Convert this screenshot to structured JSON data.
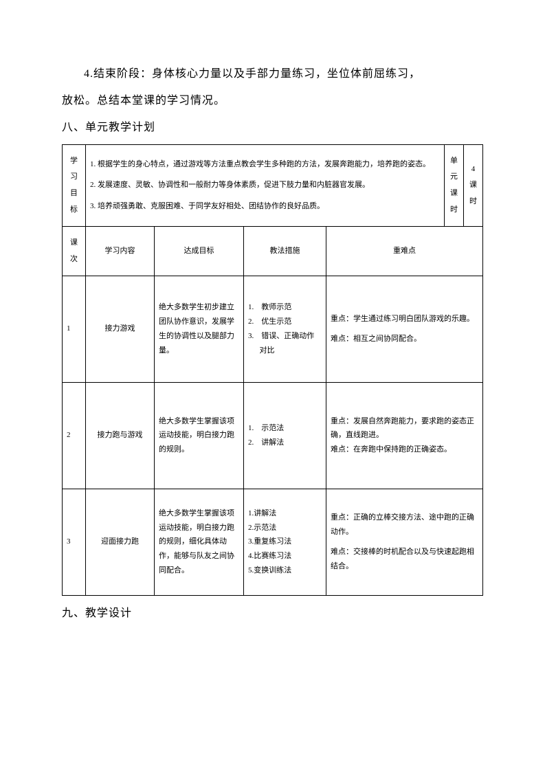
{
  "intro": {
    "para1_part1": "4.结束阶段：身体核心力量以及手部力量练习，坐位体前屈练习，",
    "para1_part2": "放松。总结本堂课的学习情况。"
  },
  "heading_8": "八、单元教学计划",
  "heading_9": "九、教学设计",
  "table": {
    "label_goal": [
      "学",
      "习",
      "目",
      "标"
    ],
    "label_unit_hours": [
      "单",
      "元",
      "课",
      "时"
    ],
    "unit_hours_value": [
      "4",
      "课",
      "时"
    ],
    "goals": {
      "g1": "1. 根据学生的身心特点，通过游戏等方法重点教会学生多种跑的方法，发展奔跑能力，培养跑的姿态。",
      "g2": "2. 发展速度、灵敏、协调性和一般耐力等身体素质，促进下肢力量和内脏器官发展。",
      "g3": "3. 培养顽强勇敢、克服困难、于同学友好相处、团结协作的良好品质。"
    },
    "headers": {
      "lesson": [
        "课",
        "次"
      ],
      "content": "学习内容",
      "target": "达成目标",
      "method": "教法措施",
      "keypoint": "重难点"
    },
    "rows": [
      {
        "num": "1",
        "content": "接力游戏",
        "target": "绝大多数学生初步建立团队协作意识，发展学生的协调性以及腿部力量。",
        "methods": [
          "1.　教师示范",
          "2.　优生示范",
          "3.　错误、正确动作对比"
        ],
        "keypoint_zhong": "重点：学生通过练习明白团队游戏的乐趣。",
        "keypoint_nan": "难点：相互之间协同配合。"
      },
      {
        "num": "2",
        "content": "接力跑与游戏",
        "target": "绝大多数学生掌握该项运动技能，明白接力跑的规则。",
        "methods": [
          "1.　示范法",
          "2.　讲解法"
        ],
        "keypoint_zhong": "重点：发展自然奔跑能力，要求跑的姿态正确，直线跑进。",
        "keypoint_nan": "难点：在奔跑中保持跑的正确姿态。"
      },
      {
        "num": "3",
        "content": "迎面接力跑",
        "target": "绝大多数学生掌握该项运动技能，明白接力跑的规则，细化具体动作，能够与队友之间协同配合。",
        "methods": [
          "1.讲解法",
          "2.示范法",
          "3.重复练习法",
          "4.比赛练习法",
          "5.变换训练法"
        ],
        "keypoint_zhong": "重点：正确的立棒交接方法、途中跑的正确动作。",
        "keypoint_nan": "难点：交接棒的时机配合以及与快速起跑相结合。"
      }
    ]
  }
}
